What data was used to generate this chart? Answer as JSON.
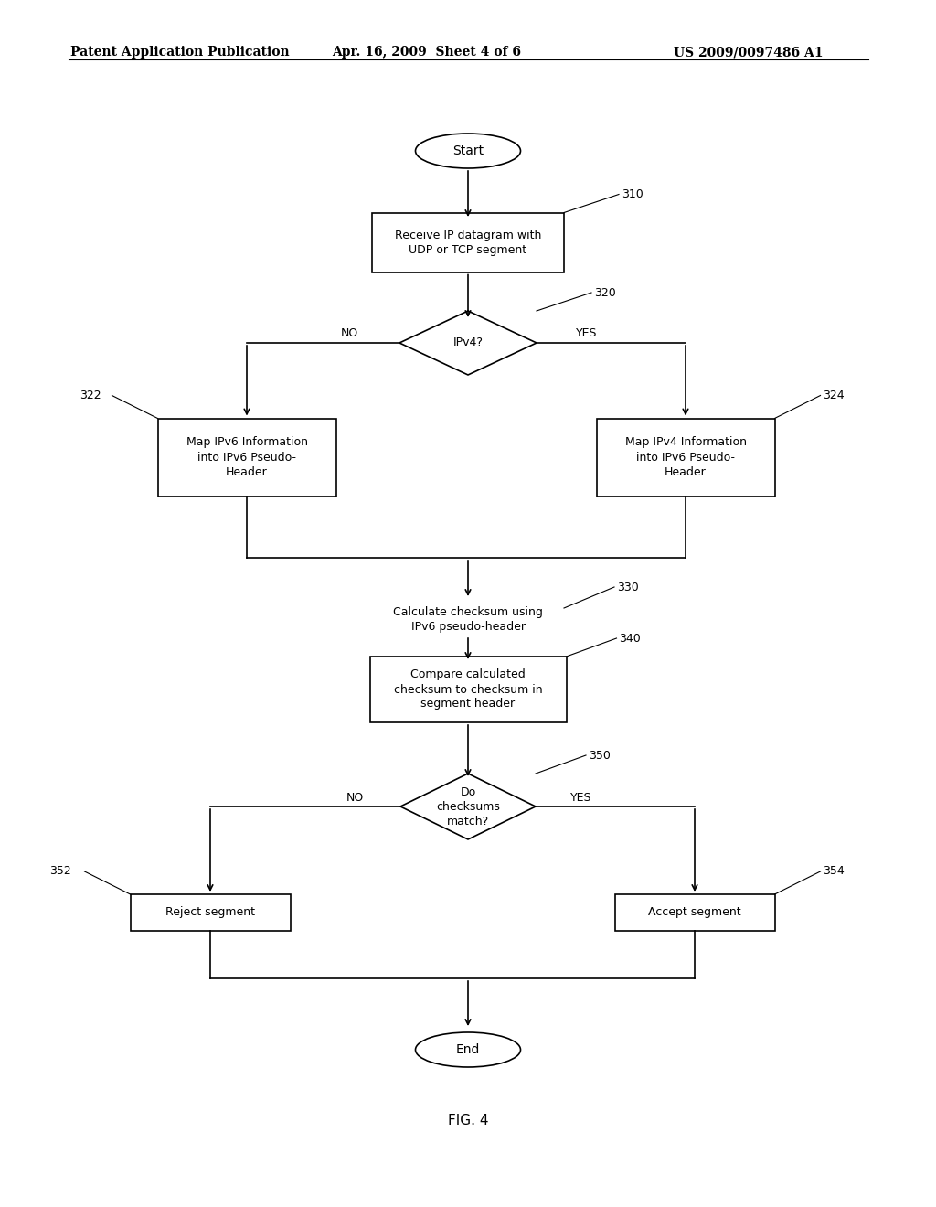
{
  "header_left": "Patent Application Publication",
  "header_mid": "Apr. 16, 2009  Sheet 4 of 6",
  "header_right": "US 2009/0097486 A1",
  "fig_label": "FIG. 4",
  "background": "#ffffff",
  "line_color": "#000000",
  "text_color": "#000000"
}
